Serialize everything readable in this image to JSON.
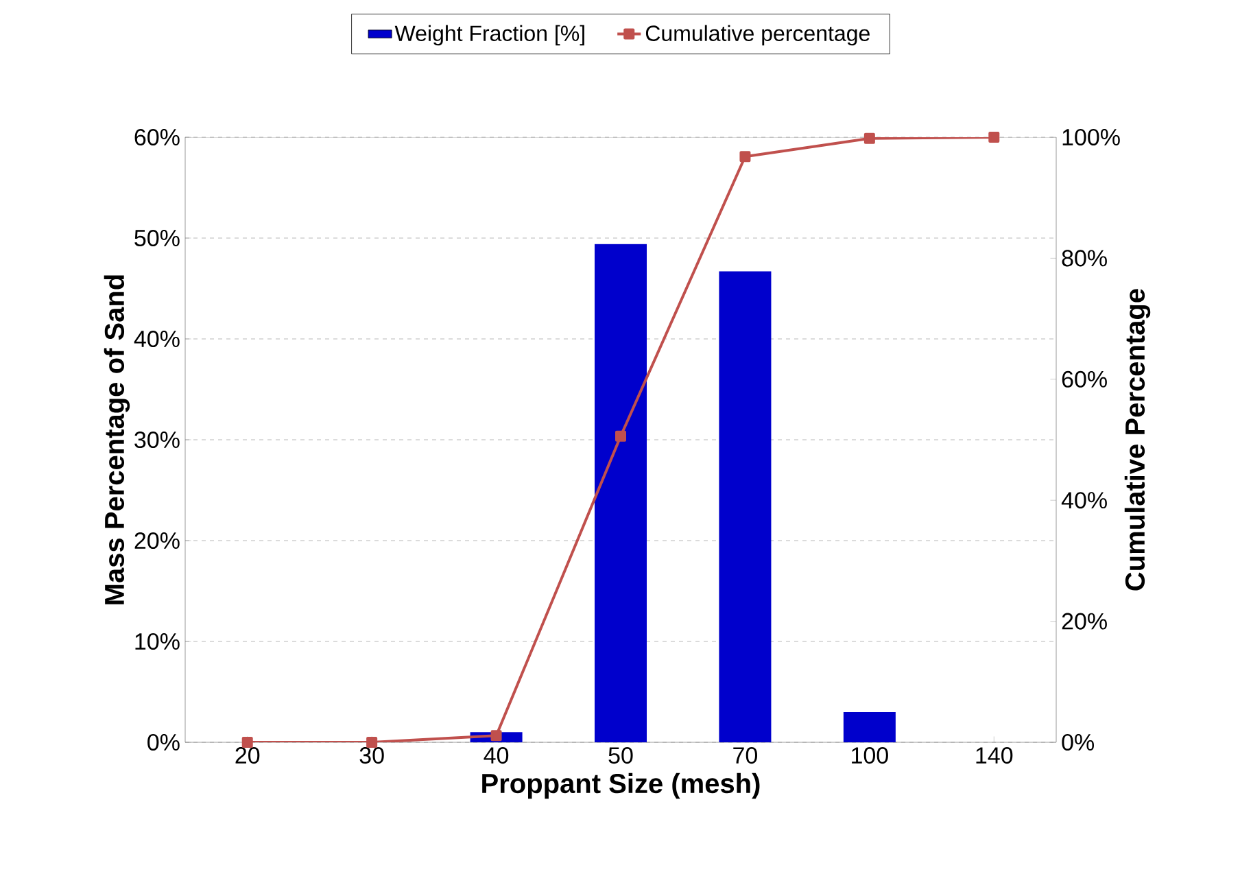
{
  "chart_data": {
    "type": "bar",
    "xlabel": "Proppant Size (mesh)",
    "ylabel": "Mass Percentage of Sand",
    "y2label": "Cumulative Percentage",
    "categories": [
      "20",
      "30",
      "40",
      "50",
      "70",
      "100",
      "140"
    ],
    "series": [
      {
        "name": "Weight Fraction [%]",
        "color": "#0000cc",
        "values": [
          null,
          null,
          1.0,
          49.4,
          46.7,
          3.0,
          0
        ]
      },
      {
        "name": "Cumulative percentage",
        "type": "line",
        "axis": "y2",
        "color": "#c0504d",
        "marker": "square",
        "values": [
          0,
          0,
          1.1,
          50.6,
          96.8,
          99.8,
          100
        ]
      }
    ],
    "ylim": [
      0,
      60
    ],
    "yticks": [
      {
        "value": 0,
        "label": "0%"
      },
      {
        "value": 10,
        "label": "10%"
      },
      {
        "value": 20,
        "label": "20%"
      },
      {
        "value": 30,
        "label": "30%"
      },
      {
        "value": 40,
        "label": "40%"
      },
      {
        "value": 50,
        "label": "50%"
      },
      {
        "value": 60,
        "label": "60%"
      }
    ],
    "y2lim": [
      0,
      100
    ],
    "y2ticks": [
      {
        "value": 0,
        "label": "0%"
      },
      {
        "value": 20,
        "label": "20%"
      },
      {
        "value": 40,
        "label": "40%"
      },
      {
        "value": 60,
        "label": "60%"
      },
      {
        "value": 80,
        "label": "80%"
      },
      {
        "value": 100,
        "label": "100%"
      }
    ],
    "grid": "y",
    "legend": "top"
  }
}
